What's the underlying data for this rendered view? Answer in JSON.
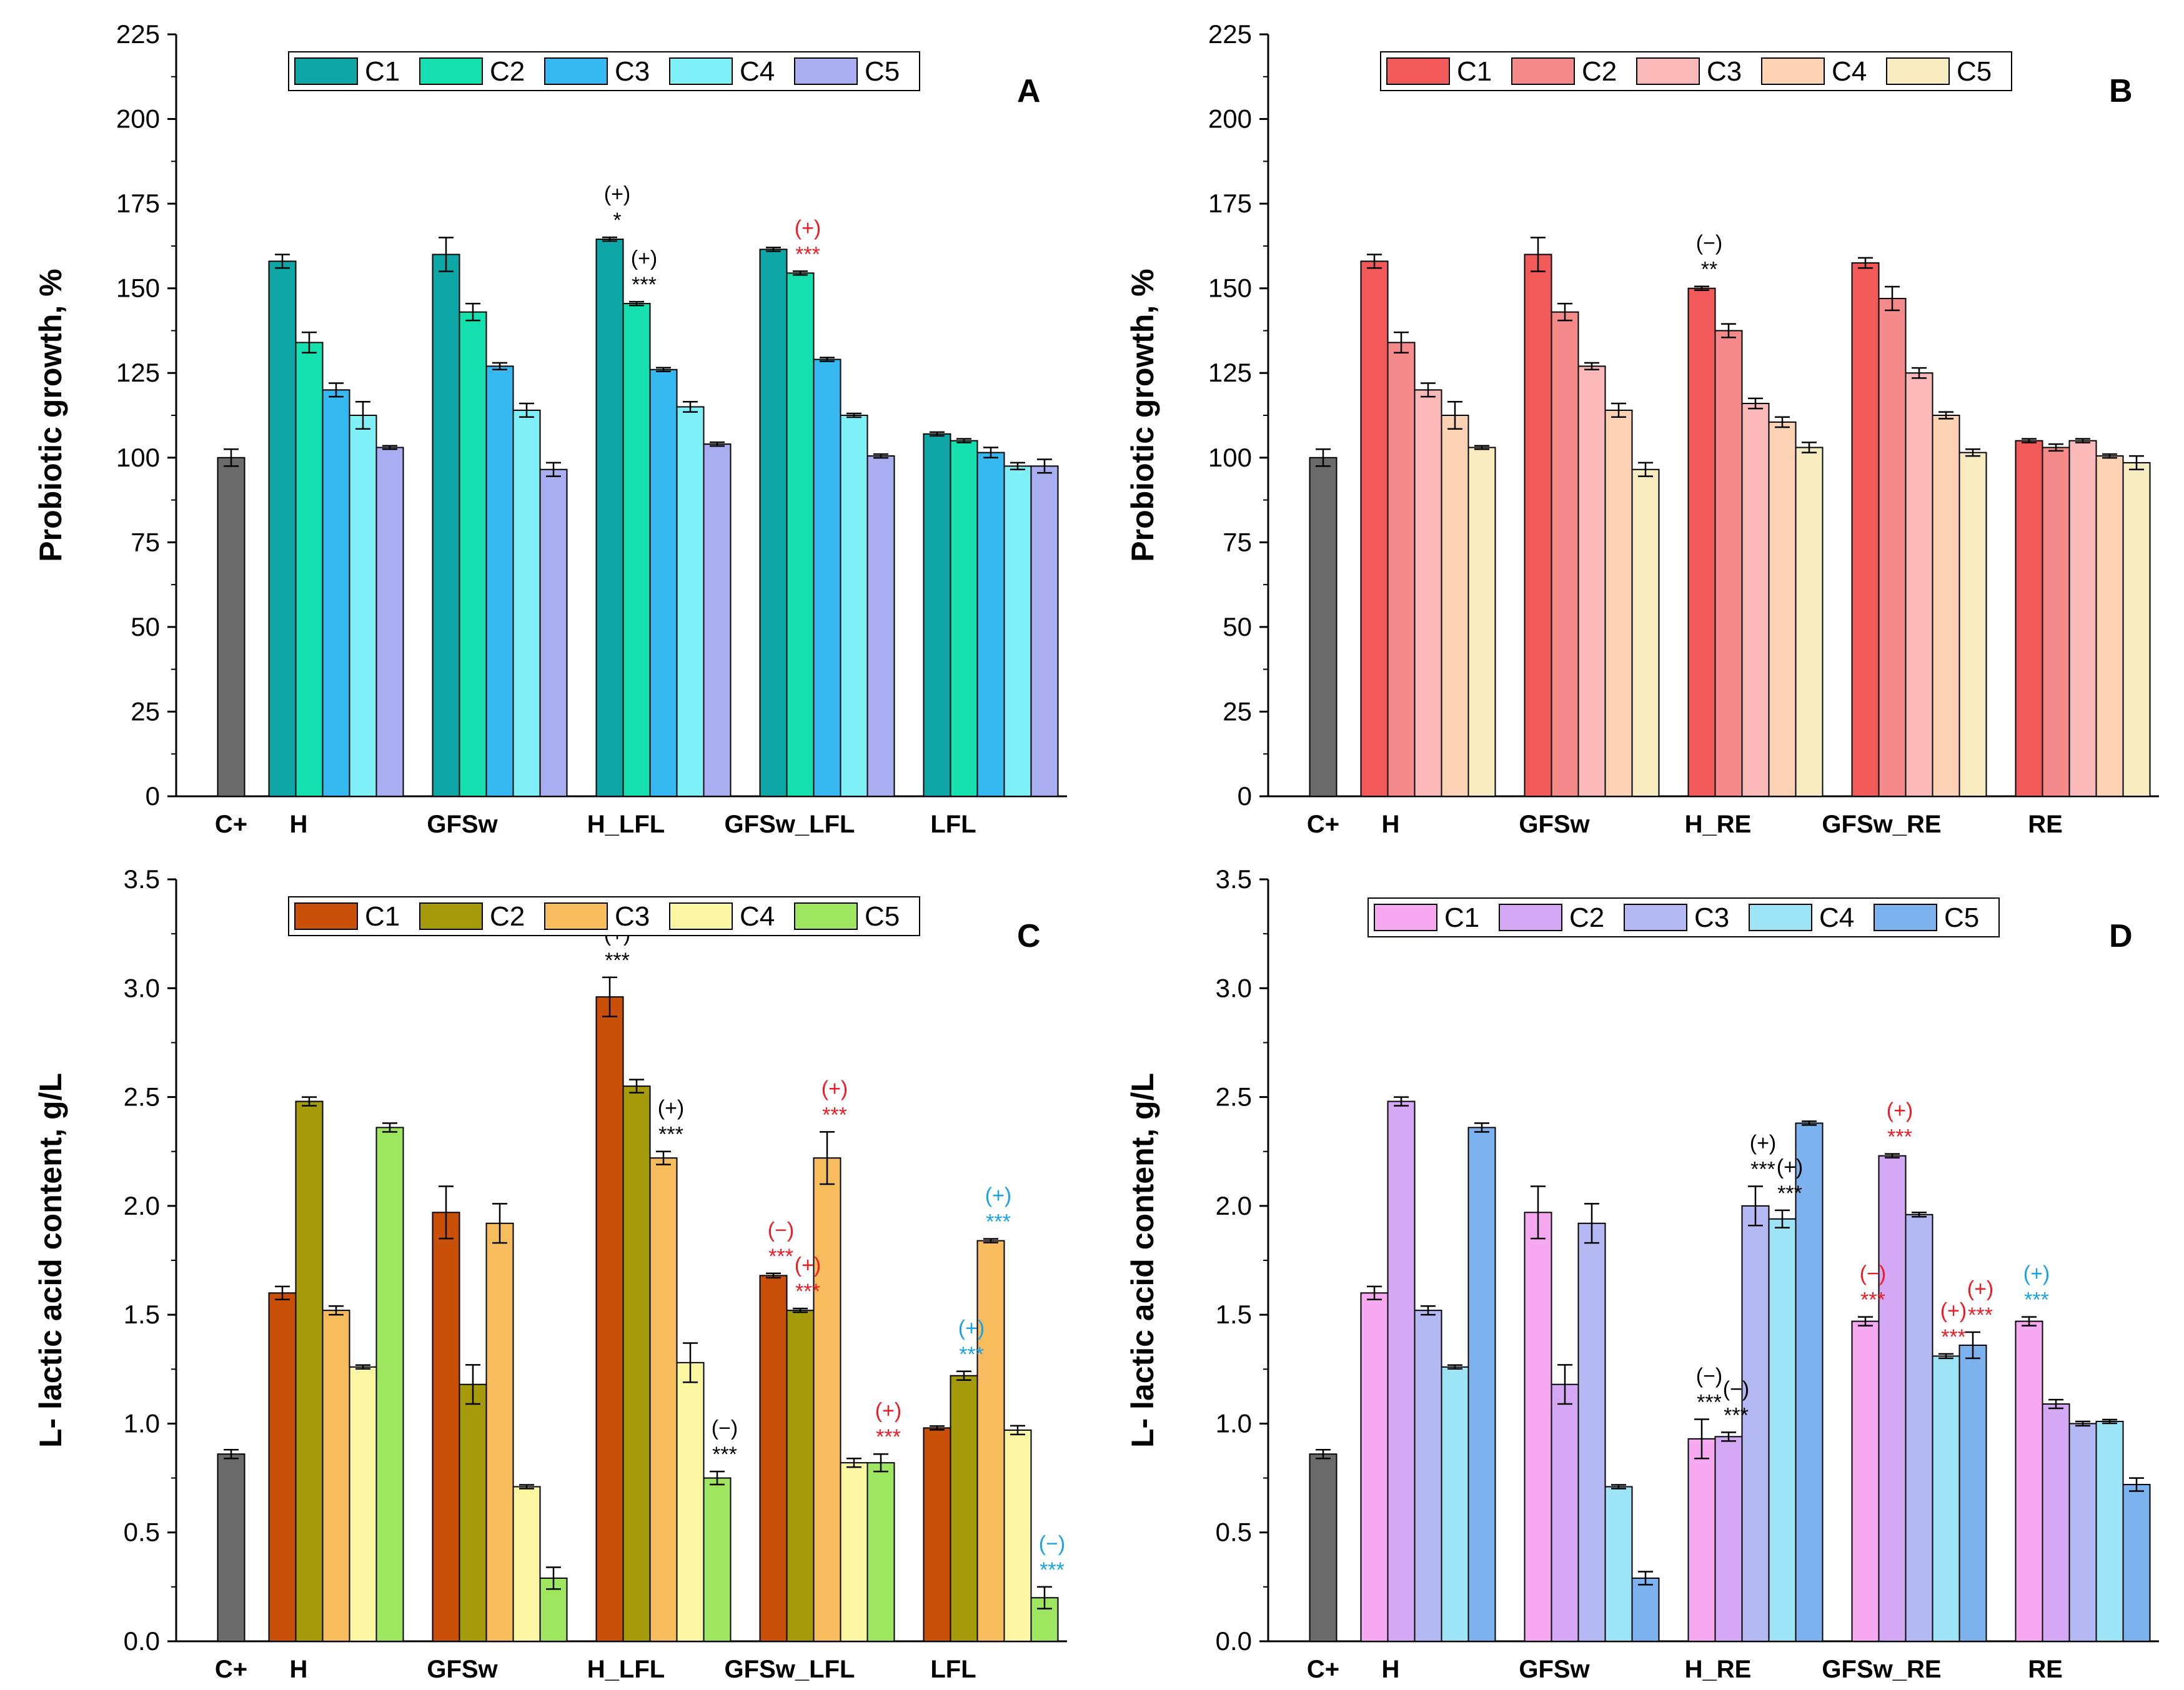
{
  "chart_data": [
    {
      "id": "A",
      "type": "bar",
      "panel_label": "A",
      "ylabel": "Probiotic growth, %",
      "ylim": [
        0,
        225
      ],
      "yticks": [
        0,
        25,
        50,
        75,
        100,
        125,
        150,
        175,
        200,
        225
      ],
      "control": {
        "name": "C+",
        "value": 100,
        "err": 2.5,
        "color": "#6b6b6b"
      },
      "categories": [
        "H",
        "GFSw",
        "H_LFL",
        "GFSw_LFL",
        "LFL"
      ],
      "series": [
        {
          "name": "C1",
          "color": "#0fa6a6",
          "values": [
            158,
            160,
            164.5,
            161.5,
            107
          ],
          "errors": [
            2,
            5,
            0,
            0,
            0
          ]
        },
        {
          "name": "C2",
          "color": "#17e0b0",
          "values": [
            134,
            143,
            145.5,
            154.5,
            105
          ],
          "errors": [
            3,
            2.5,
            0,
            0,
            0
          ]
        },
        {
          "name": "C3",
          "color": "#36b8f0",
          "values": [
            120,
            127,
            126,
            129,
            101.5
          ],
          "errors": [
            2,
            1,
            0,
            0,
            1.5
          ]
        },
        {
          "name": "C4",
          "color": "#7ff0f5",
          "values": [
            112.5,
            114,
            115,
            112.5,
            97.5
          ],
          "errors": [
            4,
            2,
            1.5,
            0,
            1
          ]
        },
        {
          "name": "C5",
          "color": "#a8aef0",
          "values": [
            103,
            96.5,
            104,
            100.5,
            97.5
          ],
          "errors": [
            0.5,
            2,
            0,
            0,
            2
          ]
        }
      ],
      "annotations": [
        {
          "group": 2,
          "series": 0,
          "sign": "(+)",
          "stars": "*",
          "color": "#000000"
        },
        {
          "group": 2,
          "series": 1,
          "sign": "(+)",
          "stars": "***",
          "color": "#000000"
        },
        {
          "group": 3,
          "series": 1,
          "sign": "(+)",
          "stars": "***",
          "color": "#ee1c25"
        }
      ]
    },
    {
      "id": "B",
      "type": "bar",
      "panel_label": "B",
      "ylabel": "Probiotic growth, %",
      "ylim": [
        0,
        225
      ],
      "yticks": [
        0,
        25,
        50,
        75,
        100,
        125,
        150,
        175,
        200,
        225
      ],
      "control": {
        "name": "C+",
        "value": 100,
        "err": 2.5,
        "color": "#6b6b6b"
      },
      "categories": [
        "H",
        "GFSw",
        "H_RE",
        "GFSw_RE",
        "RE"
      ],
      "series": [
        {
          "name": "C1",
          "color": "#f25a5a",
          "values": [
            158,
            160,
            150,
            157.5,
            105
          ],
          "errors": [
            2,
            5,
            0,
            1.5,
            0
          ]
        },
        {
          "name": "C2",
          "color": "#f58a8a",
          "values": [
            134,
            143,
            137.5,
            147,
            103
          ],
          "errors": [
            3,
            2.5,
            2,
            3.5,
            1
          ]
        },
        {
          "name": "C3",
          "color": "#f9b9b9",
          "values": [
            120,
            127,
            116,
            125,
            105
          ],
          "errors": [
            2,
            1,
            1.5,
            1.5,
            0
          ]
        },
        {
          "name": "C4",
          "color": "#fbd2b4",
          "values": [
            112.5,
            114,
            110.5,
            112.5,
            100.5
          ],
          "errors": [
            4,
            2,
            1.5,
            1,
            0
          ]
        },
        {
          "name": "C5",
          "color": "#f6ecc0",
          "values": [
            103,
            96.5,
            103,
            101.5,
            98.5
          ],
          "errors": [
            0.5,
            2,
            1.5,
            1,
            2
          ]
        }
      ],
      "annotations": [
        {
          "group": 2,
          "series": 0,
          "sign": "(−)",
          "stars": "**",
          "color": "#000000"
        }
      ]
    },
    {
      "id": "C",
      "type": "bar",
      "panel_label": "C",
      "ylabel": "L- lactic acid content, g/L",
      "ylim": [
        0,
        3.5
      ],
      "yticks": [
        0.0,
        0.5,
        1.0,
        1.5,
        2.0,
        2.5,
        3.0,
        3.5
      ],
      "control": {
        "name": "C+",
        "value": 0.86,
        "err": 0.02,
        "color": "#6b6b6b"
      },
      "categories": [
        "H",
        "GFSw",
        "H_LFL",
        "GFSw_LFL",
        "LFL"
      ],
      "series": [
        {
          "name": "C1",
          "color": "#c85008",
          "values": [
            1.6,
            1.97,
            2.96,
            1.68,
            0.98
          ],
          "errors": [
            0.03,
            0.12,
            0.09,
            0.01,
            0
          ]
        },
        {
          "name": "C2",
          "color": "#a59a0a",
          "values": [
            2.48,
            1.18,
            2.55,
            1.52,
            1.22
          ],
          "errors": [
            0.02,
            0.09,
            0.03,
            0,
            0.02
          ]
        },
        {
          "name": "C3",
          "color": "#f7bc5c",
          "values": [
            1.52,
            1.92,
            2.22,
            2.22,
            1.84
          ],
          "errors": [
            0.02,
            0.09,
            0.03,
            0.12,
            0
          ]
        },
        {
          "name": "C4",
          "color": "#fbf7a2",
          "values": [
            1.26,
            0.71,
            1.28,
            0.82,
            0.97
          ],
          "errors": [
            0,
            0,
            0.09,
            0.02,
            0.02
          ]
        },
        {
          "name": "C5",
          "color": "#9ee660",
          "values": [
            2.36,
            0.29,
            0.75,
            0.82,
            0.2
          ],
          "errors": [
            0.02,
            0.05,
            0.03,
            0.04,
            0.05
          ]
        }
      ],
      "annotations": [
        {
          "group": 2,
          "series": 0,
          "sign": "(+)",
          "stars": "***",
          "color": "#000000"
        },
        {
          "group": 2,
          "series": 2,
          "sign": "(+)",
          "stars": "***",
          "color": "#000000"
        },
        {
          "group": 2,
          "series": 4,
          "sign": "(−)",
          "stars": "***",
          "color": "#000000"
        },
        {
          "group": 3,
          "series": 0,
          "sign": "(−)",
          "stars": "***",
          "color": "#ee1c25"
        },
        {
          "group": 3,
          "series": 1,
          "sign": "(+)",
          "stars": "***",
          "color": "#ee1c25"
        },
        {
          "group": 3,
          "series": 2,
          "sign": "(+)",
          "stars": "***",
          "color": "#ee1c25"
        },
        {
          "group": 3,
          "series": 4,
          "sign": "(+)",
          "stars": "***",
          "color": "#ee1c25"
        },
        {
          "group": 4,
          "series": 1,
          "sign": "(+)",
          "stars": "***",
          "color": "#1aa3e8"
        },
        {
          "group": 4,
          "series": 2,
          "sign": "(+)",
          "stars": "***",
          "color": "#1aa3e8"
        },
        {
          "group": 4,
          "series": 4,
          "sign": "(−)",
          "stars": "***",
          "color": "#1aa3e8"
        }
      ]
    },
    {
      "id": "D",
      "type": "bar",
      "panel_label": "D",
      "ylabel": "L- lactic acid content, g/L",
      "ylim": [
        0,
        3.5
      ],
      "yticks": [
        0.0,
        0.5,
        1.0,
        1.5,
        2.0,
        2.5,
        3.0,
        3.5
      ],
      "control": {
        "name": "C+",
        "value": 0.86,
        "err": 0.02,
        "color": "#6b6b6b"
      },
      "categories": [
        "H",
        "GFSw",
        "H_RE",
        "GFSw_RE",
        "RE"
      ],
      "series": [
        {
          "name": "C1",
          "color": "#f6a8f0",
          "values": [
            1.6,
            1.97,
            0.93,
            1.47,
            1.47
          ],
          "errors": [
            0.03,
            0.12,
            0.09,
            0.02,
            0.02
          ]
        },
        {
          "name": "C2",
          "color": "#d5a8f5",
          "values": [
            2.48,
            1.18,
            0.94,
            2.23,
            1.09
          ],
          "errors": [
            0.02,
            0.09,
            0.02,
            0,
            0.02
          ]
        },
        {
          "name": "C3",
          "color": "#b4b8f3",
          "values": [
            1.52,
            1.92,
            2.0,
            1.96,
            1.0
          ],
          "errors": [
            0.02,
            0.09,
            0.09,
            0.01,
            0.01
          ]
        },
        {
          "name": "C4",
          "color": "#9ee4f7",
          "values": [
            1.26,
            0.71,
            1.94,
            1.31,
            1.01
          ],
          "errors": [
            0,
            0,
            0.04,
            0.01,
            0
          ]
        },
        {
          "name": "C5",
          "color": "#7cb2ee",
          "values": [
            2.36,
            0.29,
            2.38,
            1.36,
            0.72
          ],
          "errors": [
            0.02,
            0.03,
            0,
            0.06,
            0.03
          ]
        }
      ],
      "annotations": [
        {
          "group": 2,
          "series": 0,
          "sign": "(−)",
          "stars": "***",
          "color": "#000000"
        },
        {
          "group": 2,
          "series": 1,
          "sign": "(−)",
          "stars": "***",
          "color": "#000000"
        },
        {
          "group": 2,
          "series": 2,
          "sign": "(+)",
          "stars": "***",
          "color": "#000000"
        },
        {
          "group": 2,
          "series": 3,
          "sign": "(+)",
          "stars": "***",
          "color": "#000000"
        },
        {
          "group": 3,
          "series": 0,
          "sign": "(−)",
          "stars": "***",
          "color": "#ee1c25"
        },
        {
          "group": 3,
          "series": 1,
          "sign": "(+)",
          "stars": "***",
          "color": "#ee1c25"
        },
        {
          "group": 3,
          "series": 3,
          "sign": "(+)",
          "stars": "***",
          "color": "#ee1c25"
        },
        {
          "group": 3,
          "series": 4,
          "sign": "(+)",
          "stars": "***",
          "color": "#ee1c25"
        },
        {
          "group": 4,
          "series": 0,
          "sign": "(+)",
          "stars": "***",
          "color": "#1aa3e8"
        }
      ]
    }
  ]
}
